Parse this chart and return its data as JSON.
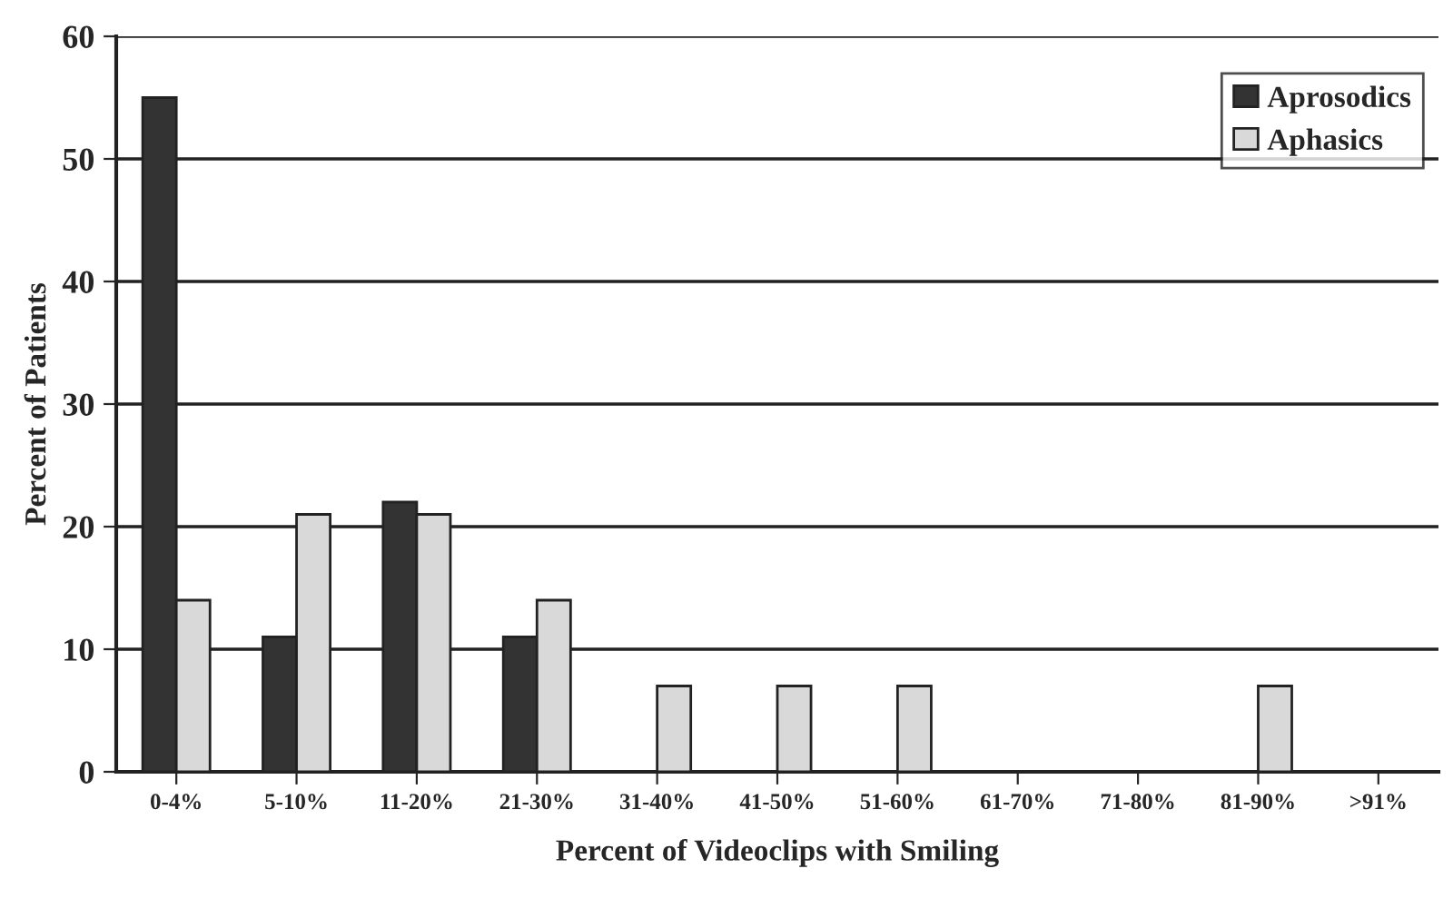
{
  "chart_data": {
    "type": "bar",
    "xlabel": "Percent of Videoclips with Smiling",
    "ylabel": "Percent of Patients",
    "categories": [
      "0-4%",
      "5-10%",
      "11-20%",
      "21-30%",
      "31-40%",
      "41-50%",
      "51-60%",
      "61-70%",
      "71-80%",
      "81-90%",
      ">91%"
    ],
    "series": [
      {
        "name": "Aprosodics",
        "color": "#333333",
        "values": [
          55,
          11,
          22,
          11,
          0,
          0,
          0,
          0,
          0,
          0,
          0
        ]
      },
      {
        "name": "Aphasics",
        "color": "#d9d9d9",
        "values": [
          14,
          21,
          21,
          14,
          7,
          7,
          7,
          0,
          0,
          7,
          0
        ]
      }
    ],
    "ylim": [
      0,
      60
    ],
    "yticks": [
      0,
      10,
      20,
      30,
      40,
      50,
      60
    ],
    "grid": "y",
    "legend": "top right"
  }
}
